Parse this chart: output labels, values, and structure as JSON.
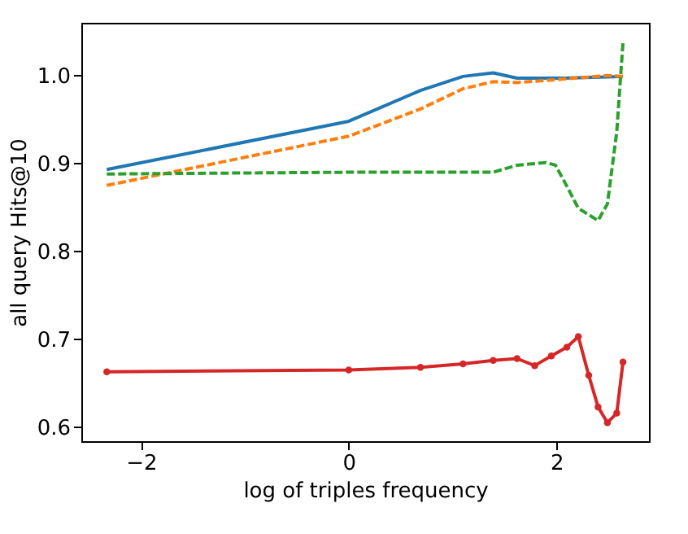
{
  "chart_data": {
    "type": "line",
    "xlabel": "log of triples frequency",
    "ylabel": "all query Hits@10",
    "xlim": [
      -2.575,
      2.89
    ],
    "ylim": [
      0.584,
      1.06
    ],
    "xticks": [
      {
        "value": -2,
        "label": "−2"
      },
      0,
      2
    ],
    "yticks": [
      0.6,
      0.7,
      0.8,
      0.9,
      {
        "value": 1,
        "label": "1.0"
      }
    ],
    "grid": false,
    "series": [
      {
        "color": "#1f77b4",
        "line_style": "solid",
        "marker": "none",
        "x": [
          -2.33,
          0,
          0.69,
          1.1,
          1.39,
          1.62,
          2.07,
          2.64
        ],
        "values": [
          0.893,
          0.948,
          0.983,
          0.999,
          1.003,
          0.997,
          0.997,
          0.999
        ]
      },
      {
        "color": "#ff7f0e",
        "line_style": "dashed",
        "marker": "none",
        "x": [
          -2.33,
          0,
          0.69,
          1.1,
          1.39,
          1.62,
          2.07,
          2.49,
          2.64
        ],
        "values": [
          0.875,
          0.931,
          0.962,
          0.985,
          0.993,
          0.992,
          0.996,
          1.0,
          0.999
        ]
      },
      {
        "color": "#2ca02c",
        "line_style": "dashed",
        "marker": "none",
        "x": [
          -2.33,
          0,
          1.39,
          1.62,
          1.9,
          1.99,
          2.1,
          2.21,
          2.4,
          2.49,
          2.58,
          2.64
        ],
        "values": [
          0.888,
          0.89,
          0.89,
          0.898,
          0.901,
          0.898,
          0.874,
          0.849,
          0.835,
          0.854,
          0.936,
          1.038
        ]
      },
      {
        "color": "#d62728",
        "line_style": "solid",
        "marker": "circle",
        "x": [
          -2.33,
          0,
          0.69,
          1.1,
          1.39,
          1.62,
          1.79,
          1.95,
          2.1,
          2.21,
          2.31,
          2.4,
          2.49,
          2.58,
          2.64
        ],
        "values": [
          0.663,
          0.665,
          0.668,
          0.672,
          0.676,
          0.678,
          0.67,
          0.681,
          0.691,
          0.703,
          0.659,
          0.623,
          0.605,
          0.616,
          0.674
        ]
      }
    ]
  }
}
